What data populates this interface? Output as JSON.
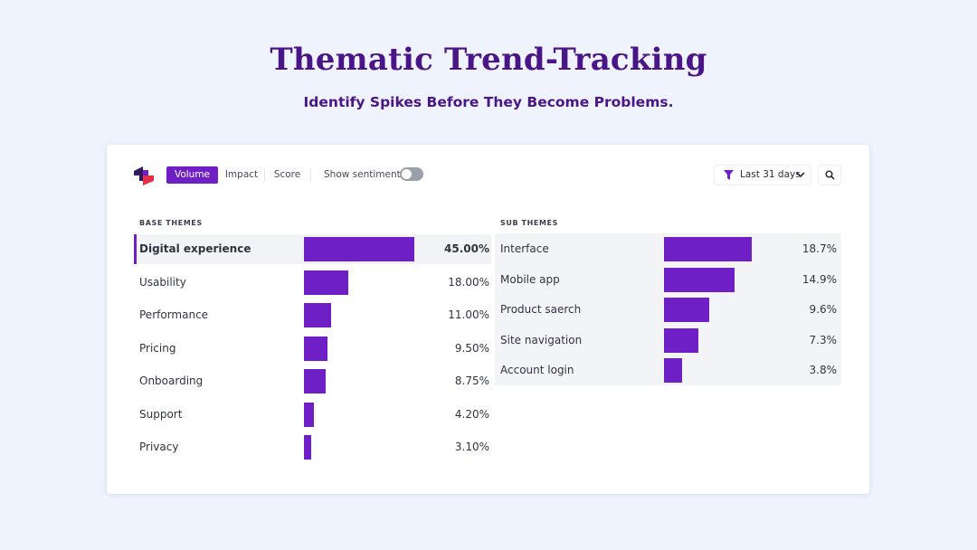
{
  "hero": {
    "title": "Thematic Trend-Tracking",
    "subtitle": "Identify Spikes Before They Become Problems."
  },
  "toolbar": {
    "metrics": [
      "Volume",
      "Impact",
      "Score"
    ],
    "active_metric": "Volume",
    "sentiment_label": "Show sentiment",
    "sentiment_on": false,
    "date_range": "Last 31 days",
    "icons": [
      "logo-icon",
      "filter-icon",
      "chevron-down-icon",
      "search-icon"
    ]
  },
  "colors": {
    "accent": "#6f1fc6",
    "title": "#4a1587",
    "page_bg": "#eef3fd",
    "logo_dark": "#2e1a5c",
    "logo_red": "#e0304c"
  },
  "base_themes": {
    "header": "BASE THEMES",
    "selected": "Digital experience",
    "items": [
      {
        "name": "Digital experience",
        "value": 45.0,
        "label": "45.00%"
      },
      {
        "name": "Usability",
        "value": 18.0,
        "label": "18.00%"
      },
      {
        "name": "Performance",
        "value": 11.0,
        "label": "11.00%"
      },
      {
        "name": "Pricing",
        "value": 9.5,
        "label": "9.50%"
      },
      {
        "name": "Onboarding",
        "value": 8.75,
        "label": "8.75%"
      },
      {
        "name": "Support",
        "value": 4.2,
        "label": "4.20%"
      },
      {
        "name": "Privacy",
        "value": 3.1,
        "label": "3.10%"
      }
    ]
  },
  "sub_themes": {
    "header": "SUB THEMES",
    "items": [
      {
        "name": "Interface",
        "value": 18.7,
        "label": "18.7%"
      },
      {
        "name": "Mobile app",
        "value": 14.9,
        "label": "14.9%"
      },
      {
        "name": "Product saerch",
        "value": 9.6,
        "label": "9.6%"
      },
      {
        "name": "Site navigation",
        "value": 7.3,
        "label": "7.3%"
      },
      {
        "name": "Account login",
        "value": 3.8,
        "label": "3.8%"
      }
    ]
  }
}
